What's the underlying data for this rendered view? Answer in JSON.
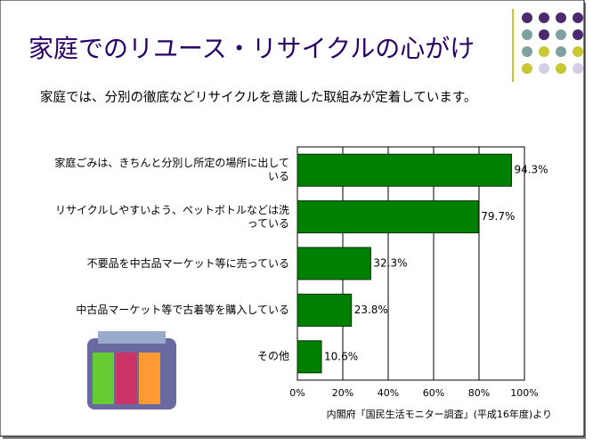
{
  "chart_data": {
    "type": "barh",
    "title": "家庭でのリユース・リサイクルの心がけ",
    "subtitle": "家庭では、分別の徹底などリサイクルを意識した取組みが定着しています。",
    "categories": [
      "家庭ごみは、きちんと分別し所定の場所に出している",
      "リサイクルしやすいよう、ペットボトルなどは洗っている",
      "不要品を中古品マーケット等に売っている",
      "中古品マーケット等で古着等を購入している",
      "その他"
    ],
    "values": [
      94.3,
      79.7,
      32.3,
      23.8,
      10.6
    ],
    "value_labels": [
      "94.3%",
      "79.7%",
      "32.3%",
      "23.8%",
      "10.6%"
    ],
    "color": "#008000",
    "xlim": [
      0,
      100
    ],
    "xticks": [
      {
        "value": 0,
        "label": "0%"
      },
      {
        "value": 20,
        "label": "20%"
      },
      {
        "value": 40,
        "label": "40%"
      },
      {
        "value": 60,
        "label": "60%"
      },
      {
        "value": 80,
        "label": "80%"
      },
      {
        "value": 100,
        "label": "100%"
      }
    ],
    "grid": true,
    "source": "内閣府「国民生活モニター調査」(平成16年度)より"
  }
}
